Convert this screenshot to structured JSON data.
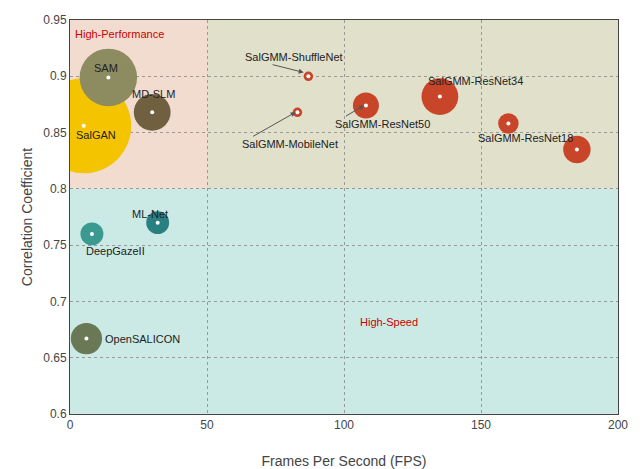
{
  "chart_data": {
    "type": "bubble",
    "xlabel": "Frames Per Second (FPS)",
    "ylabel": "Correlation Coefficient",
    "xlim": [
      0,
      200
    ],
    "ylim": [
      0.6,
      0.95
    ],
    "xticks": [
      0,
      50,
      100,
      150,
      200
    ],
    "yticks": [
      0.6,
      0.65,
      0.7,
      0.75,
      0.8,
      0.85,
      0.9,
      0.95
    ],
    "grid": true,
    "x": [
      5,
      14,
      30,
      8,
      32,
      6,
      83,
      87,
      108,
      135,
      160,
      185
    ],
    "values": [
      0.856,
      0.899,
      0.868,
      0.76,
      0.77,
      0.667,
      0.868,
      0.9,
      0.874,
      0.882,
      0.858,
      0.835
    ],
    "sizes": [
      6000,
      2200,
      900,
      350,
      350,
      650,
      60,
      60,
      450,
      900,
      280,
      500
    ],
    "colors": [
      "#F5C400",
      "#8C8C60",
      "#706040",
      "#3A9A90",
      "#2A8080",
      "#6B7855",
      "#C8452A",
      "#C8452A",
      "#C8452A",
      "#C8452A",
      "#C8452A",
      "#C8452A"
    ],
    "regions": [
      {
        "x0": 0,
        "x1": 50,
        "y0": 0.8,
        "y1": 0.95,
        "color": "#E8C0A8"
      },
      {
        "x0": 50,
        "x1": 200,
        "y0": 0.8,
        "y1": 0.95,
        "color": "#C8C8A0"
      },
      {
        "x0": 0,
        "x1": 200,
        "y0": 0.6,
        "y1": 0.8,
        "color": "#A0D8D0"
      }
    ],
    "annotations": [
      {
        "text": "SalGAN",
        "x": 1.5,
        "y": 0.848
      },
      {
        "text": "SAM",
        "x": 8,
        "y": 0.907
      },
      {
        "text": "MD-SLM",
        "x": 22,
        "y": 0.884
      },
      {
        "text": "DeepGazeII",
        "x": 5,
        "y": 0.745
      },
      {
        "text": "ML-Net",
        "x": 22,
        "y": 0.778
      },
      {
        "text": "OpenSALICON",
        "x": 12,
        "y": 0.667
      },
      {
        "text": "SalGMM-ShuffleNet",
        "x": 63,
        "y": 0.917,
        "arrow_x": 86,
        "arrow_y": 0.903
      },
      {
        "text": "SalGMM-MobileNet",
        "x": 62,
        "y": 0.84,
        "arrow_x": 83,
        "arrow_y": 0.869
      },
      {
        "text": "SalGMM-ResNet50",
        "x": 96,
        "y": 0.858,
        "arrow_x": 108,
        "arrow_y": 0.875
      },
      {
        "text": "SalGMM-ResNet34",
        "x": 130,
        "y": 0.896
      },
      {
        "text": "SalGMM-ResNet18",
        "x": 148,
        "y": 0.845
      },
      {
        "text": "High-Performance",
        "x": 1,
        "y": 0.938,
        "color": "#CC0000"
      },
      {
        "text": "High-Speed",
        "x": 105,
        "y": 0.682,
        "color": "#CC0000"
      }
    ]
  }
}
